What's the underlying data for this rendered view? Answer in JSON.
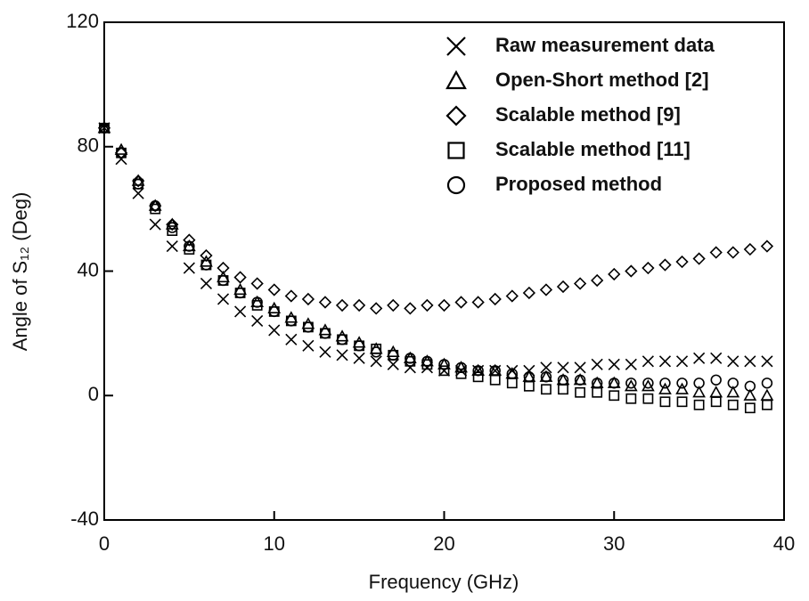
{
  "chart_data": {
    "type": "scatter",
    "xlabel": "Frequency (GHz)",
    "ylabel": "Angle of S₁₂ (Deg)",
    "x": [
      0,
      1,
      2,
      3,
      4,
      5,
      6,
      7,
      8,
      9,
      10,
      11,
      12,
      13,
      14,
      15,
      16,
      17,
      18,
      19,
      20,
      21,
      22,
      23,
      24,
      25,
      26,
      27,
      28,
      29,
      30,
      31,
      32,
      33,
      34,
      35,
      36,
      37,
      38,
      39
    ],
    "xlim": [
      0,
      40
    ],
    "xticks": [
      0,
      10,
      20,
      30,
      40
    ],
    "ylim": [
      -40,
      120
    ],
    "yticks": [
      -40,
      0,
      40,
      80,
      120
    ],
    "legend": "upper right",
    "series": [
      {
        "name": "Raw measurement data",
        "marker": "x",
        "color": "#000000",
        "values": [
          86,
          76,
          65,
          55,
          48,
          41,
          36,
          31,
          27,
          24,
          21,
          18,
          16,
          14,
          13,
          12,
          11,
          10,
          9,
          9,
          8,
          8,
          8,
          8,
          8,
          8,
          9,
          9,
          9,
          10,
          10,
          10,
          11,
          11,
          11,
          12,
          12,
          11,
          11,
          11
        ]
      },
      {
        "name": "Open-Short method [2]",
        "marker": "triangle",
        "color": "#000000",
        "values": [
          86,
          79,
          69,
          61,
          55,
          48,
          43,
          38,
          34,
          30,
          28,
          25,
          23,
          21,
          19,
          17,
          15,
          14,
          12,
          11,
          10,
          9,
          8,
          8,
          7,
          6,
          6,
          5,
          5,
          4,
          4,
          3,
          3,
          2,
          2,
          1,
          1,
          1,
          0,
          0
        ]
      },
      {
        "name": "Scalable method [9]",
        "marker": "diamond",
        "color": "#000000",
        "values": [
          86,
          78,
          69,
          61,
          55,
          50,
          45,
          41,
          38,
          36,
          34,
          32,
          31,
          30,
          29,
          29,
          28,
          29,
          28,
          29,
          29,
          30,
          30,
          31,
          32,
          33,
          34,
          35,
          36,
          37,
          39,
          40,
          41,
          42,
          43,
          44,
          46,
          46,
          47,
          48
        ]
      },
      {
        "name": "Scalable method [11]",
        "marker": "square",
        "color": "#000000",
        "values": [
          86,
          78,
          68,
          60,
          53,
          47,
          42,
          37,
          33,
          29,
          27,
          24,
          22,
          20,
          18,
          16,
          15,
          13,
          11,
          10,
          8,
          7,
          6,
          5,
          4,
          3,
          2,
          2,
          1,
          1,
          0,
          -1,
          -1,
          -2,
          -2,
          -3,
          -2,
          -3,
          -4,
          -3
        ]
      },
      {
        "name": "Proposed method",
        "marker": "circle",
        "color": "#000000",
        "values": [
          86,
          78,
          68,
          61,
          54,
          48,
          42,
          37,
          33,
          30,
          27,
          24,
          22,
          20,
          18,
          16,
          14,
          13,
          12,
          11,
          10,
          9,
          8,
          8,
          7,
          6,
          6,
          5,
          5,
          4,
          4,
          4,
          4,
          4,
          4,
          4,
          5,
          4,
          3,
          4
        ]
      }
    ]
  }
}
